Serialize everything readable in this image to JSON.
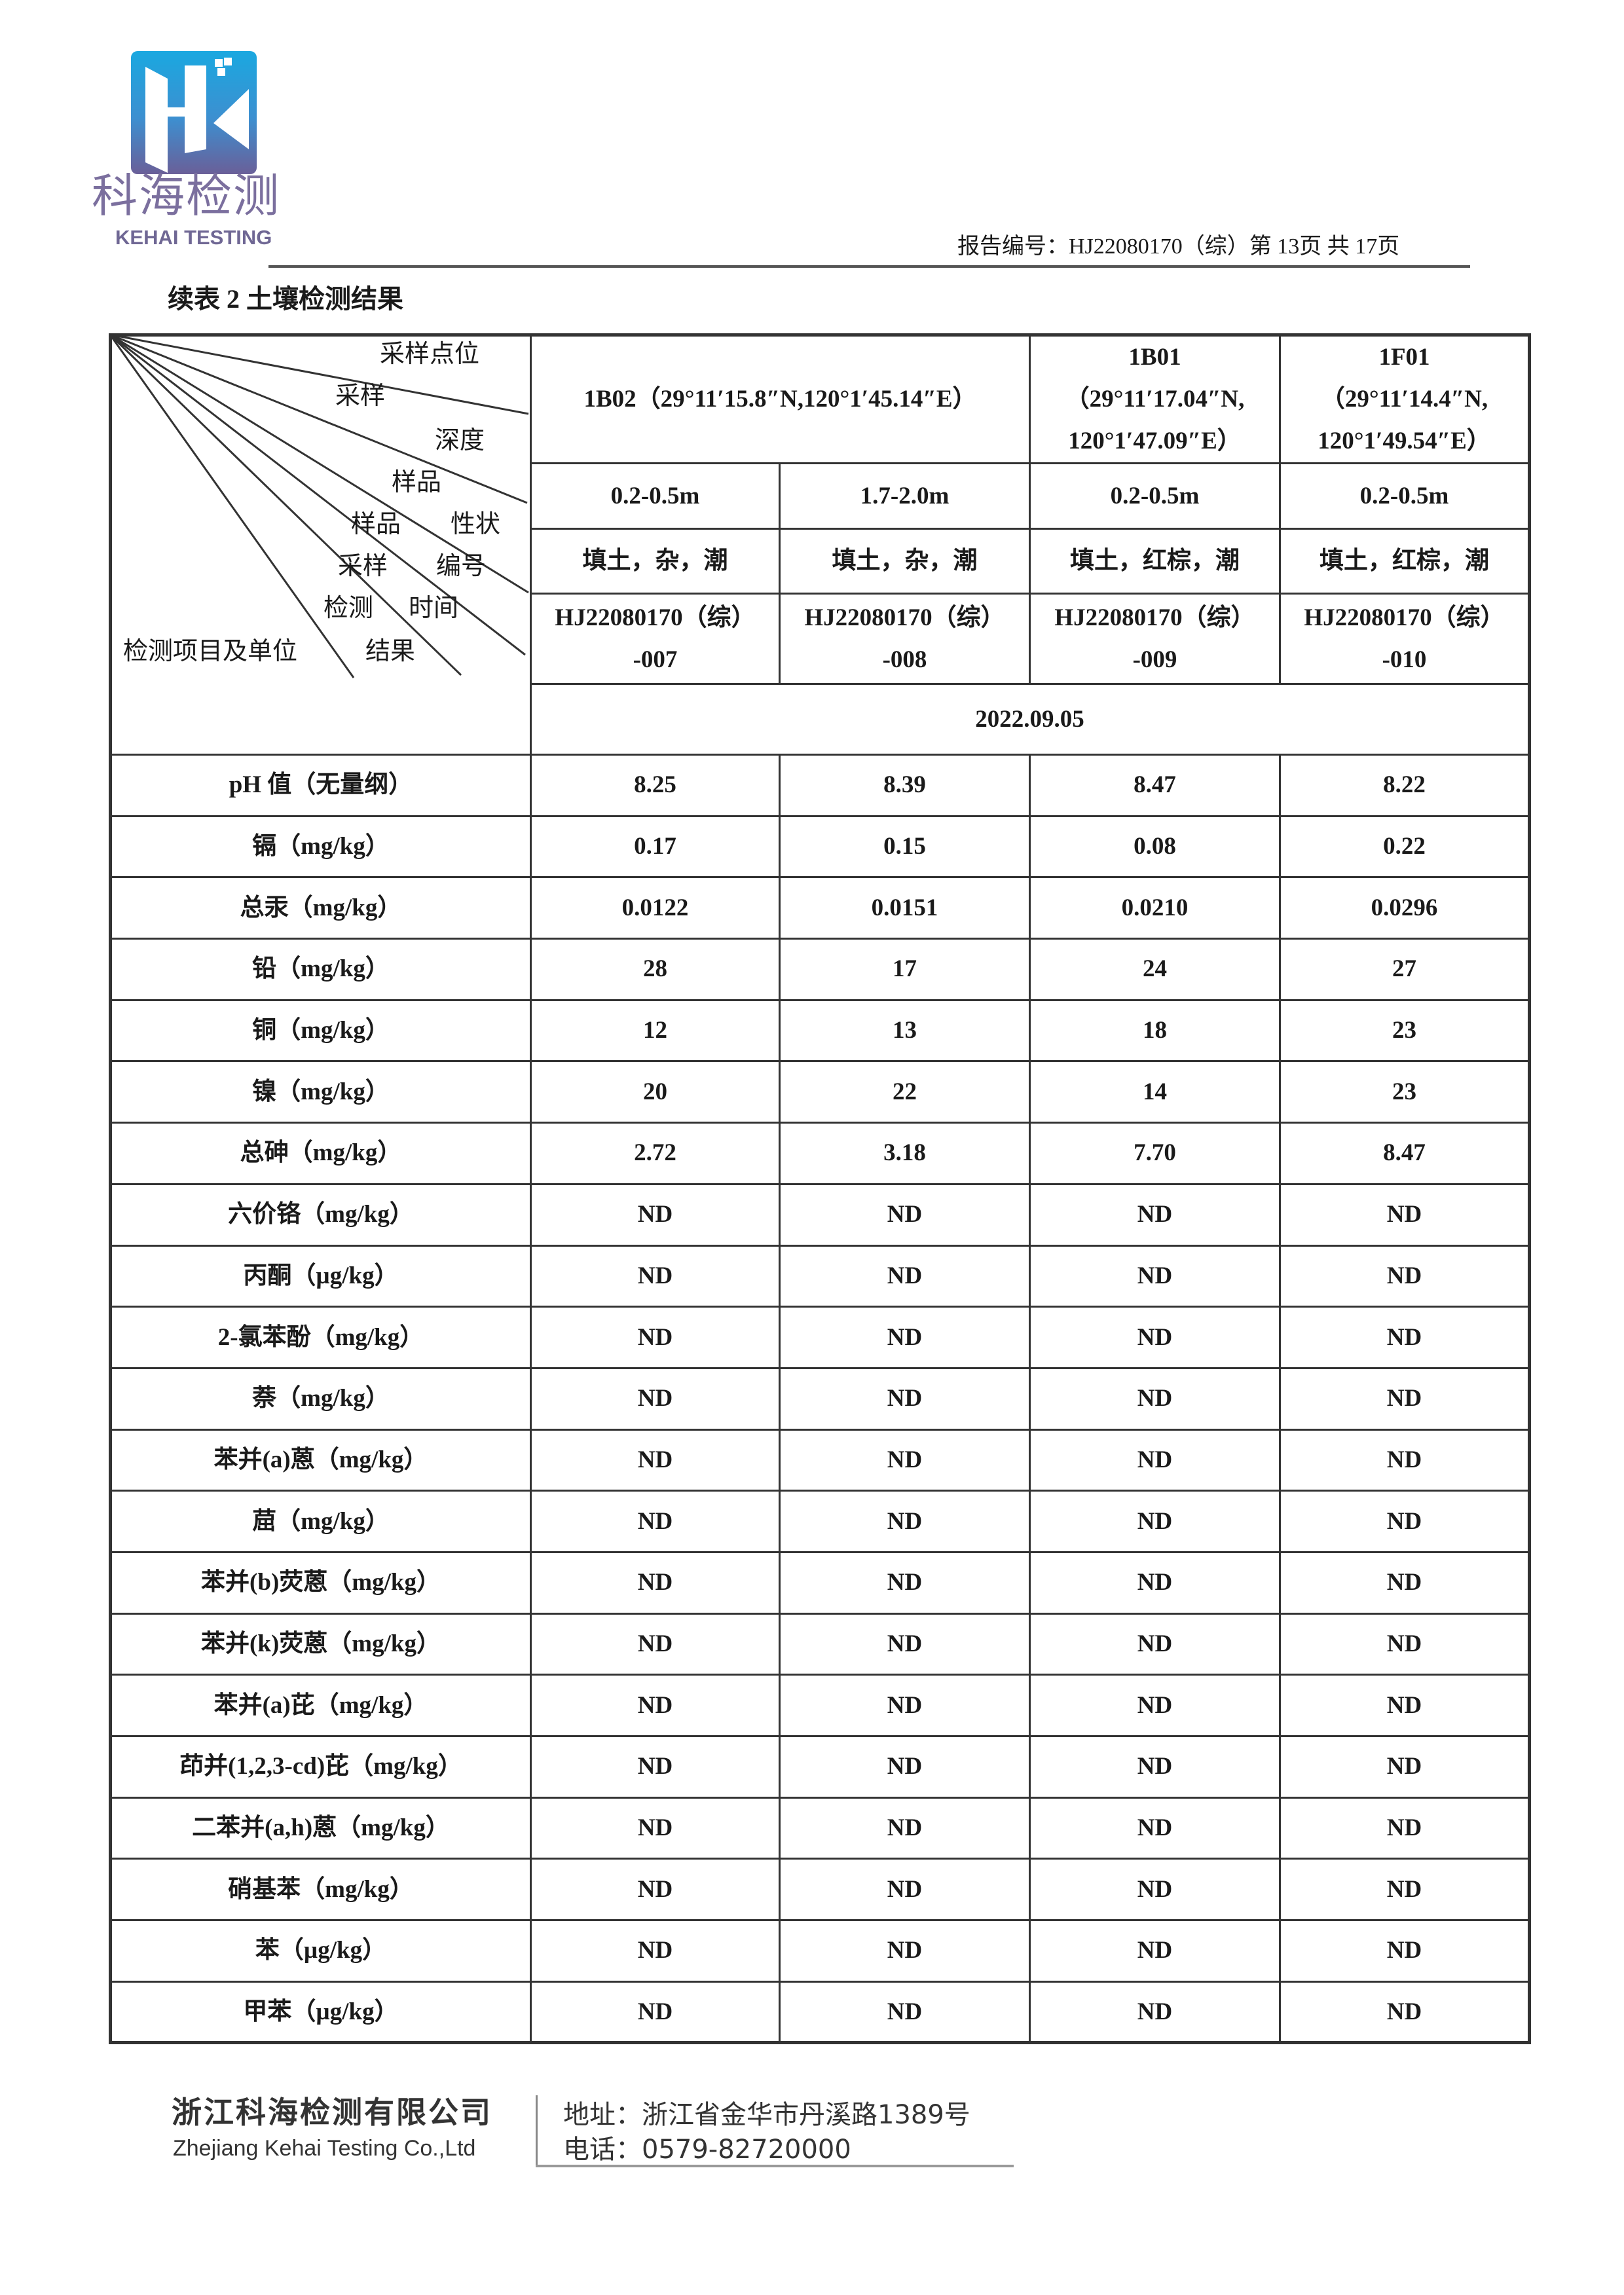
{
  "logo": {
    "name_cn": "科海检测",
    "name_en": "KEHAI TESTING",
    "colors": {
      "top": "#1aa8e0",
      "bottom": "#6a5f98",
      "text": "#7b6f9e"
    }
  },
  "header": {
    "report_no": "报告编号：HJ22080170（综）第 13页  共 17页"
  },
  "table_title": "续表 2 土壤检测结果",
  "diagonal_header": {
    "site": "采样点位",
    "depth_a": "采样",
    "depth_b": "深度",
    "prop_a": "样品",
    "prop_b": "样品",
    "prop_c": "性状",
    "id_a": "采样",
    "id_b": "编号",
    "time_a": "检测",
    "time_b": "时间",
    "item": "检测项目及单位",
    "result": "结果"
  },
  "sites": [
    {
      "label": "1B02（29°11′15.8″N,120°1′45.14″E）"
    },
    {
      "label_1": "1B01",
      "label_2": "（29°11′17.04″N,",
      "label_3": "120°1′47.09″E）"
    },
    {
      "label_1": "1F01",
      "label_2": "（29°11′14.4″N,",
      "label_3": "120°1′49.54″E）"
    }
  ],
  "depths": [
    "0.2-0.5m",
    "1.7-2.0m",
    "0.2-0.5m",
    "0.2-0.5m"
  ],
  "properties": [
    "填土，杂，潮",
    "填土，杂，潮",
    "填土，红棕，潮",
    "填土，红棕，潮"
  ],
  "sample_ids": [
    {
      "a": "HJ22080170（综）",
      "b": "-007"
    },
    {
      "a": "HJ22080170（综）",
      "b": "-008"
    },
    {
      "a": "HJ22080170（综）",
      "b": "-009"
    },
    {
      "a": "HJ22080170（综）",
      "b": "-010"
    }
  ],
  "test_date": "2022.09.05",
  "rows": [
    {
      "item": "pH 值（无量纲）",
      "values": [
        "8.25",
        "8.39",
        "8.47",
        "8.22"
      ]
    },
    {
      "item": "镉（mg/kg）",
      "values": [
        "0.17",
        "0.15",
        "0.08",
        "0.22"
      ]
    },
    {
      "item": "总汞（mg/kg）",
      "values": [
        "0.0122",
        "0.0151",
        "0.0210",
        "0.0296"
      ]
    },
    {
      "item": "铅（mg/kg）",
      "values": [
        "28",
        "17",
        "24",
        "27"
      ]
    },
    {
      "item": "铜（mg/kg）",
      "values": [
        "12",
        "13",
        "18",
        "23"
      ]
    },
    {
      "item": "镍（mg/kg）",
      "values": [
        "20",
        "22",
        "14",
        "23"
      ]
    },
    {
      "item": "总砷（mg/kg）",
      "values": [
        "2.72",
        "3.18",
        "7.70",
        "8.47"
      ]
    },
    {
      "item": "六价铬（mg/kg）",
      "values": [
        "ND",
        "ND",
        "ND",
        "ND"
      ]
    },
    {
      "item": "丙酮（µg/kg）",
      "values": [
        "ND",
        "ND",
        "ND",
        "ND"
      ]
    },
    {
      "item": "2-氯苯酚（mg/kg）",
      "values": [
        "ND",
        "ND",
        "ND",
        "ND"
      ]
    },
    {
      "item": "萘（mg/kg）",
      "values": [
        "ND",
        "ND",
        "ND",
        "ND"
      ]
    },
    {
      "item": "苯并(a)蒽（mg/kg）",
      "values": [
        "ND",
        "ND",
        "ND",
        "ND"
      ]
    },
    {
      "item": "䓛（mg/kg）",
      "values": [
        "ND",
        "ND",
        "ND",
        "ND"
      ]
    },
    {
      "item": "苯并(b)荧蒽（mg/kg）",
      "values": [
        "ND",
        "ND",
        "ND",
        "ND"
      ]
    },
    {
      "item": "苯并(k)荧蒽（mg/kg）",
      "values": [
        "ND",
        "ND",
        "ND",
        "ND"
      ]
    },
    {
      "item": "苯并(a)芘（mg/kg）",
      "values": [
        "ND",
        "ND",
        "ND",
        "ND"
      ]
    },
    {
      "item": "茚并(1,2,3-cd)芘（mg/kg）",
      "values": [
        "ND",
        "ND",
        "ND",
        "ND"
      ]
    },
    {
      "item": "二苯并(a,h)蒽（mg/kg）",
      "values": [
        "ND",
        "ND",
        "ND",
        "ND"
      ]
    },
    {
      "item": "硝基苯（mg/kg）",
      "values": [
        "ND",
        "ND",
        "ND",
        "ND"
      ]
    },
    {
      "item": "苯（µg/kg）",
      "values": [
        "ND",
        "ND",
        "ND",
        "ND"
      ]
    },
    {
      "item": "甲苯（µg/kg）",
      "values": [
        "ND",
        "ND",
        "ND",
        "ND"
      ]
    }
  ],
  "footer": {
    "company_cn": "浙江科海检测有限公司",
    "company_en": "Zhejiang Kehai Testing Co.,Ltd",
    "address": "地址：浙江省金华市丹溪路1389号",
    "phone": "电话：0579-82720000"
  }
}
